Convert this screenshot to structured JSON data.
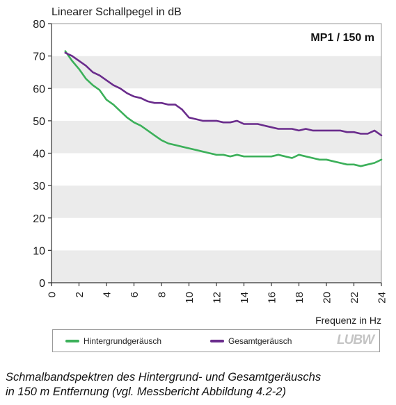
{
  "chart_data": {
    "type": "line",
    "title": "Linearer Schallpegel in dB",
    "annotation": "MP1 / 150 m",
    "xlabel": "Frequenz in Hz",
    "ylabel": "Linearer Schallpegel in dB",
    "xlim": [
      0,
      24
    ],
    "ylim": [
      0,
      80
    ],
    "xticks": [
      0,
      2,
      4,
      6,
      8,
      10,
      12,
      14,
      16,
      18,
      20,
      22,
      24
    ],
    "yticks": [
      0,
      10,
      20,
      30,
      40,
      50,
      60,
      70,
      80
    ],
    "grid": "alternating horizontal bands",
    "legend_position": "bottom",
    "series": [
      {
        "name": "Hintergrundgeräusch",
        "color": "#3cb05a",
        "x": [
          1.0,
          1.5,
          2.0,
          2.5,
          3.0,
          3.5,
          4.0,
          4.5,
          5.0,
          5.5,
          6.0,
          6.5,
          7.0,
          7.5,
          8.0,
          8.5,
          9.0,
          9.5,
          10.0,
          10.5,
          11.0,
          11.5,
          12.0,
          12.5,
          13.0,
          13.5,
          14.0,
          14.5,
          15.0,
          15.5,
          16.0,
          16.5,
          17.0,
          17.5,
          18.0,
          18.5,
          19.0,
          19.5,
          20.0,
          20.5,
          21.0,
          21.5,
          22.0,
          22.5,
          23.0,
          23.5,
          24.0
        ],
        "values": [
          71.5,
          68.5,
          66.0,
          63.0,
          61.0,
          59.5,
          56.5,
          55.0,
          53.0,
          51.0,
          49.5,
          48.5,
          47.0,
          45.5,
          44.0,
          43.0,
          42.5,
          42.0,
          41.5,
          41.0,
          40.5,
          40.0,
          39.5,
          39.5,
          39.0,
          39.5,
          39.0,
          39.0,
          39.0,
          39.0,
          39.0,
          39.5,
          39.0,
          38.5,
          39.5,
          39.0,
          38.5,
          38.0,
          38.0,
          37.5,
          37.0,
          36.5,
          36.5,
          36.0,
          36.5,
          37.0,
          38.0
        ]
      },
      {
        "name": "Gesamtgeräusch",
        "color": "#6a2c8c",
        "x": [
          1.0,
          1.5,
          2.0,
          2.5,
          3.0,
          3.5,
          4.0,
          4.5,
          5.0,
          5.5,
          6.0,
          6.5,
          7.0,
          7.5,
          8.0,
          8.5,
          9.0,
          9.5,
          10.0,
          10.5,
          11.0,
          11.5,
          12.0,
          12.5,
          13.0,
          13.5,
          14.0,
          14.5,
          15.0,
          15.5,
          16.0,
          16.5,
          17.0,
          17.5,
          18.0,
          18.5,
          19.0,
          19.5,
          20.0,
          20.5,
          21.0,
          21.5,
          22.0,
          22.5,
          23.0,
          23.5,
          24.0
        ],
        "values": [
          71.0,
          70.0,
          68.5,
          67.0,
          65.0,
          64.0,
          62.5,
          61.0,
          60.0,
          58.5,
          57.5,
          57.0,
          56.0,
          55.5,
          55.5,
          55.0,
          55.0,
          53.5,
          51.0,
          50.5,
          50.0,
          50.0,
          50.0,
          49.5,
          49.5,
          50.0,
          49.0,
          49.0,
          49.0,
          48.5,
          48.0,
          47.5,
          47.5,
          47.5,
          47.0,
          47.5,
          47.0,
          47.0,
          47.0,
          47.0,
          47.0,
          46.5,
          46.5,
          46.0,
          46.0,
          47.0,
          45.5
        ]
      }
    ]
  },
  "legend": {
    "items": [
      {
        "label": "Hintergrundgeräusch",
        "color": "#3cb05a"
      },
      {
        "label": "Gesamtgeräusch",
        "color": "#6a2c8c"
      }
    ],
    "logo_text": "LUBW"
  },
  "caption": {
    "line1": "Schmalbandspektren des Hintergrund- und Gesamtgeräuschs",
    "line2": "in 150 m Entfernung (vgl. Messbericht Abbildung 4.2-2)"
  }
}
